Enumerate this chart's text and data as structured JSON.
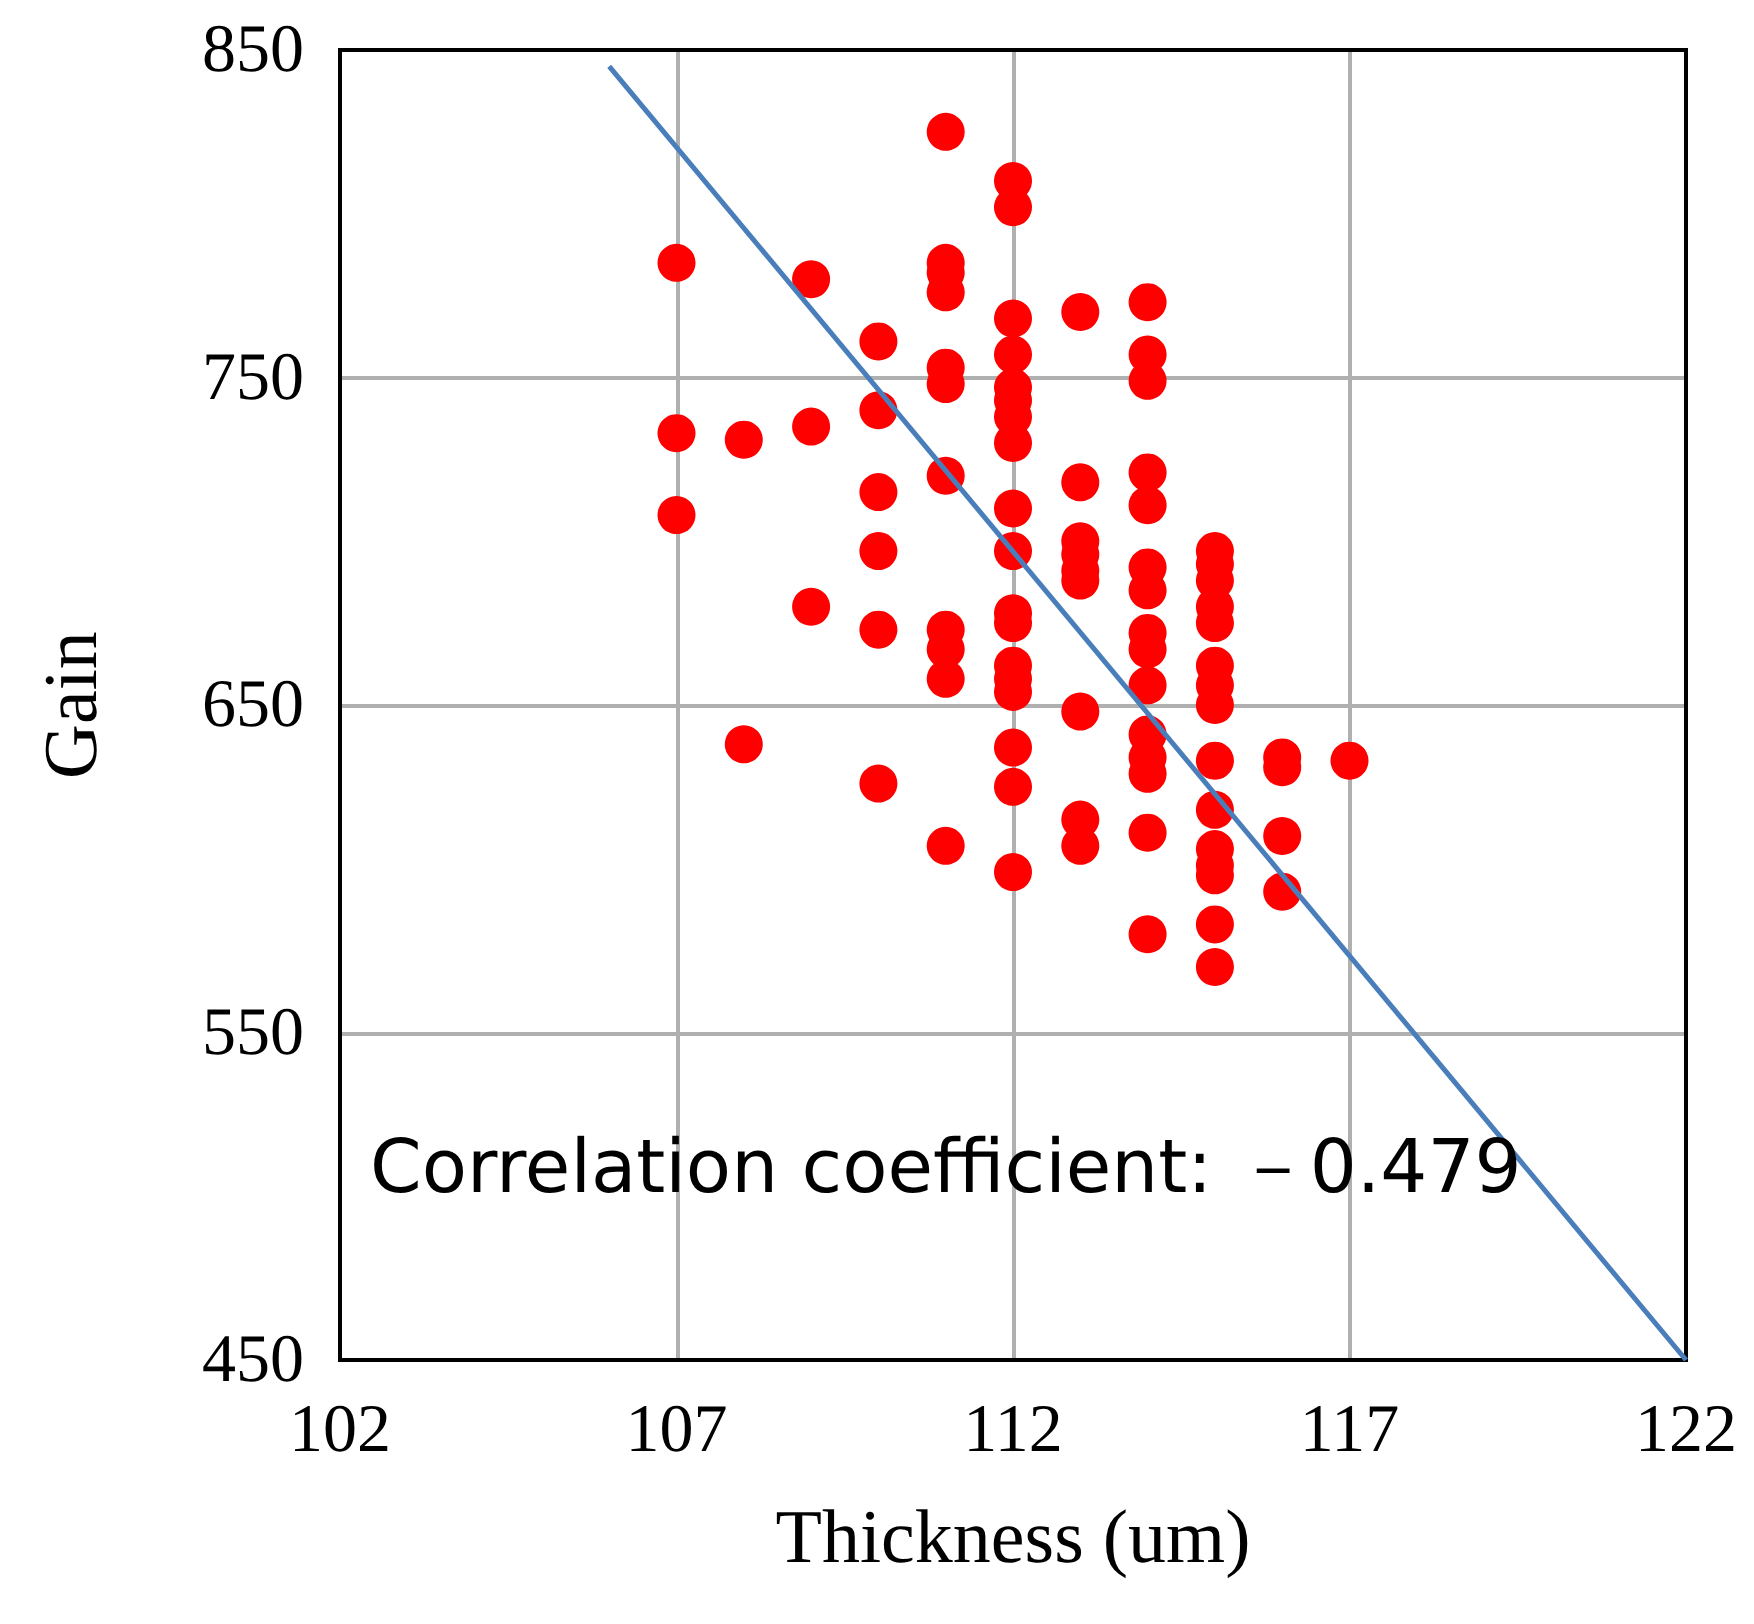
{
  "chart_data": {
    "type": "scatter",
    "xlabel": "Thickness (um)",
    "ylabel": "Gain",
    "xlim": [
      102,
      122
    ],
    "xticks": [
      102,
      107,
      112,
      117,
      122
    ],
    "ylim": [
      450,
      850
    ],
    "yticks": [
      450,
      550,
      650,
      750,
      850
    ],
    "grid": true,
    "marker": "circle",
    "annotations": [
      "Correlation coefficient: －0.479"
    ],
    "series": [
      {
        "color": "#ff0000",
        "x": [
          107,
          107,
          107,
          108,
          108,
          109,
          109,
          109,
          110,
          110,
          110,
          110,
          110,
          110,
          111,
          111,
          111,
          111,
          111,
          111,
          111,
          111,
          111,
          111,
          111,
          112,
          112,
          112,
          112,
          112,
          112,
          112,
          112,
          112,
          112,
          112,
          112,
          112,
          112,
          112,
          112,
          112,
          112,
          113,
          113,
          113,
          113,
          113,
          113,
          113,
          113,
          113,
          114,
          114,
          114,
          114,
          114,
          114,
          114,
          114,
          114,
          114,
          114,
          114,
          114,
          114,
          114,
          115,
          115,
          115,
          115,
          115,
          115,
          115,
          115,
          115,
          115,
          115,
          115,
          115,
          115,
          115,
          116,
          116,
          116,
          116,
          117
        ],
        "values": [
          785,
          733,
          708,
          731,
          638,
          780,
          735,
          680,
          761,
          740,
          715,
          697,
          673,
          626,
          825,
          785,
          782,
          776,
          753,
          748,
          720,
          673,
          667,
          658,
          607,
          810,
          802,
          768,
          757,
          747,
          743,
          738,
          730,
          710,
          697,
          678,
          675,
          662,
          658,
          654,
          637,
          625,
          599,
          770,
          718,
          700,
          696,
          691,
          688,
          648,
          615,
          607,
          773,
          757,
          749,
          721,
          711,
          692,
          685,
          672,
          667,
          656,
          641,
          634,
          629,
          611,
          580,
          697,
          693,
          688,
          680,
          675,
          662,
          656,
          650,
          633,
          618,
          606,
          601,
          598,
          583,
          570,
          634,
          631,
          610,
          593,
          633
        ]
      },
      {
        "type": "line",
        "color": "#4a7ebb",
        "marker": "none",
        "x": [
          106,
          122
        ],
        "values": [
          845,
          450
        ]
      }
    ]
  }
}
